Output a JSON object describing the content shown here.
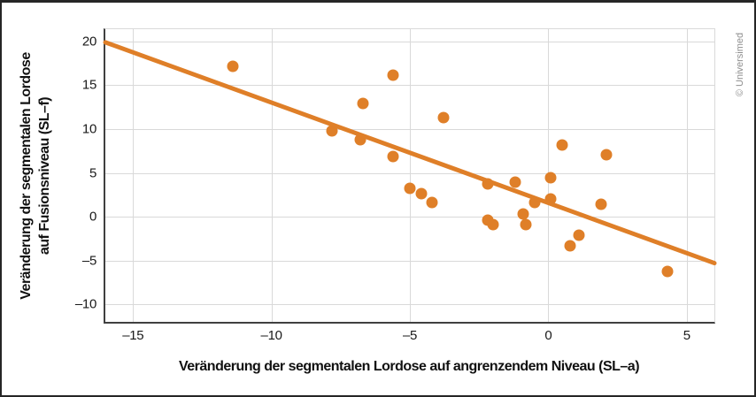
{
  "figure": {
    "copyright": "© Universimed"
  },
  "chart_data": {
    "type": "scatter",
    "title": "",
    "xlabel": "Veränderung der segmentalen Lordose auf angrenzendem Niveau (SL–a)",
    "ylabel": "Veränderung der segmentalen Lordose auf Fusionsniveau (SL–f)",
    "ylabel_lines": [
      "Veränderung der segmentalen Lordose",
      "auf Fusionsniveau (SL–f)"
    ],
    "xlim": [
      -16,
      6
    ],
    "ylim": [
      -12,
      21.4
    ],
    "xticks": [
      -15,
      -10,
      -5,
      0,
      5
    ],
    "xtick_labels": [
      "–15",
      "–10",
      "–5",
      "0",
      "5"
    ],
    "yticks": [
      -10,
      -5,
      0,
      5,
      10,
      15,
      20
    ],
    "ytick_labels": [
      "–10",
      "–5",
      "0",
      "5",
      "10",
      "15",
      "20"
    ],
    "grid": true,
    "legend": "none",
    "accent_color": "#df7f28",
    "gridline_color": "#d9d9d9",
    "axis_line_color": "#404040",
    "points": [
      {
        "x": -11.4,
        "y": 17.2
      },
      {
        "x": -7.8,
        "y": 9.8
      },
      {
        "x": -6.7,
        "y": 12.9
      },
      {
        "x": -6.8,
        "y": 8.8
      },
      {
        "x": -5.6,
        "y": 16.2
      },
      {
        "x": -3.8,
        "y": 11.3
      },
      {
        "x": -5.6,
        "y": 6.9
      },
      {
        "x": -5.0,
        "y": 3.2
      },
      {
        "x": -4.6,
        "y": 2.6
      },
      {
        "x": -4.2,
        "y": 1.6
      },
      {
        "x": -2.2,
        "y": 3.7
      },
      {
        "x": -1.2,
        "y": 3.9
      },
      {
        "x": 0.1,
        "y": 4.4
      },
      {
        "x": 0.5,
        "y": 8.2
      },
      {
        "x": 2.1,
        "y": 7.1
      },
      {
        "x": -0.5,
        "y": 1.6
      },
      {
        "x": 0.1,
        "y": 2.0
      },
      {
        "x": -0.9,
        "y": 0.3
      },
      {
        "x": -0.8,
        "y": -0.9
      },
      {
        "x": -2.2,
        "y": -0.4
      },
      {
        "x": -2.0,
        "y": -0.9
      },
      {
        "x": 1.9,
        "y": 1.4
      },
      {
        "x": 1.1,
        "y": -2.1
      },
      {
        "x": 0.8,
        "y": -3.3
      },
      {
        "x": 4.3,
        "y": -6.2
      }
    ],
    "trendline": {
      "x1": -16,
      "y1": 19.9,
      "x2": 6,
      "y2": -5.3
    }
  }
}
